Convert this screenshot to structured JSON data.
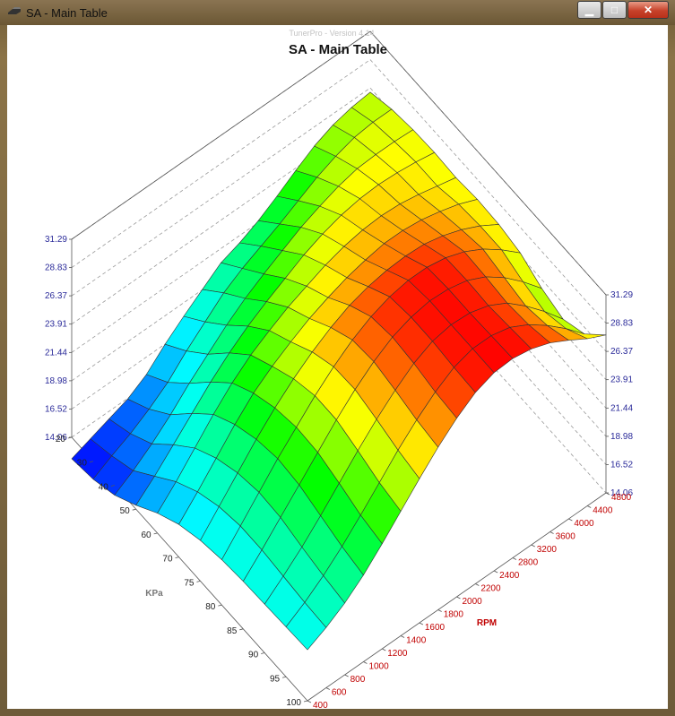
{
  "window": {
    "title": "SA - Main Table",
    "controls": {
      "minimize": "minimize-icon",
      "maximize": "maximize-icon",
      "close": "close-icon"
    }
  },
  "watermark": "TunerPro - Version 4.14",
  "chart_data": {
    "type": "surface3d",
    "title": "SA - Main Table",
    "x_axis": {
      "label": "KPa",
      "ticks": [
        "20",
        "30",
        "40",
        "50",
        "60",
        "70",
        "75",
        "80",
        "85",
        "90",
        "95",
        "100"
      ]
    },
    "y_axis": {
      "label": "RPM",
      "ticks": [
        "400",
        "600",
        "800",
        "1000",
        "1200",
        "1400",
        "1600",
        "1800",
        "2000",
        "2200",
        "2400",
        "2800",
        "3200",
        "3600",
        "4000",
        "4400",
        "4800"
      ]
    },
    "z_axis": {
      "ticks": [
        "14.06",
        "16.52",
        "18.98",
        "21.44",
        "23.91",
        "26.37",
        "28.83",
        "31.29"
      ],
      "range": [
        14.06,
        31.29
      ]
    },
    "values": [
      [
        12.2,
        12.8,
        13.4,
        14.0,
        15.0,
        16.5,
        17.8,
        19.0,
        20.2,
        20.8,
        21.6,
        22.6,
        23.7,
        24.7,
        25.4,
        25.8,
        26.0
      ],
      [
        12.5,
        13.4,
        14.2,
        15.2,
        16.4,
        18.0,
        19.4,
        20.8,
        21.8,
        22.6,
        23.4,
        24.3,
        25.2,
        25.9,
        26.4,
        26.6,
        26.6
      ],
      [
        13.2,
        14.2,
        15.4,
        16.8,
        18.4,
        19.8,
        21.2,
        22.4,
        23.4,
        24.3,
        25.2,
        25.9,
        26.5,
        26.9,
        27.0,
        27.0,
        26.9
      ],
      [
        14.4,
        15.8,
        17.4,
        19.0,
        20.6,
        22.0,
        23.2,
        24.2,
        25.1,
        26.0,
        26.7,
        27.2,
        27.5,
        27.6,
        27.5,
        27.3,
        27.0
      ],
      [
        15.8,
        17.4,
        19.2,
        21.0,
        22.6,
        23.9,
        24.9,
        25.8,
        26.5,
        27.2,
        27.7,
        28.0,
        28.1,
        28.0,
        27.7,
        27.3,
        26.9
      ],
      [
        16.9,
        18.6,
        20.4,
        22.2,
        23.8,
        25.0,
        26.0,
        26.9,
        27.6,
        28.2,
        28.6,
        28.9,
        28.9,
        28.7,
        28.3,
        27.8,
        27.1
      ],
      [
        17.6,
        19.4,
        21.2,
        23.0,
        24.6,
        26.0,
        27.2,
        28.2,
        29.0,
        29.5,
        29.8,
        29.9,
        29.8,
        29.4,
        28.8,
        28.0,
        27.0
      ],
      [
        18.0,
        19.8,
        21.6,
        23.4,
        25.0,
        26.6,
        28.0,
        29.2,
        30.1,
        30.7,
        31.0,
        31.0,
        30.7,
        30.1,
        29.2,
        28.0,
        26.6
      ],
      [
        18.2,
        19.8,
        21.5,
        23.2,
        24.9,
        26.6,
        28.1,
        29.4,
        30.4,
        31.0,
        31.3,
        31.2,
        30.8,
        30.0,
        28.8,
        27.3,
        25.6
      ],
      [
        18.3,
        19.6,
        21.0,
        22.6,
        24.3,
        26.0,
        27.6,
        29.0,
        30.2,
        31.0,
        31.3,
        31.2,
        30.7,
        29.8,
        28.4,
        26.8,
        25.0
      ],
      [
        18.4,
        19.4,
        20.6,
        22.0,
        23.6,
        25.3,
        27.0,
        28.5,
        29.8,
        30.8,
        31.3,
        31.3,
        30.9,
        30.0,
        28.8,
        27.4,
        25.8
      ],
      [
        18.5,
        19.3,
        20.3,
        21.6,
        23.2,
        24.9,
        26.6,
        28.2,
        29.6,
        30.7,
        31.3,
        31.4,
        31.1,
        30.5,
        29.6,
        28.6,
        27.8
      ]
    ]
  }
}
